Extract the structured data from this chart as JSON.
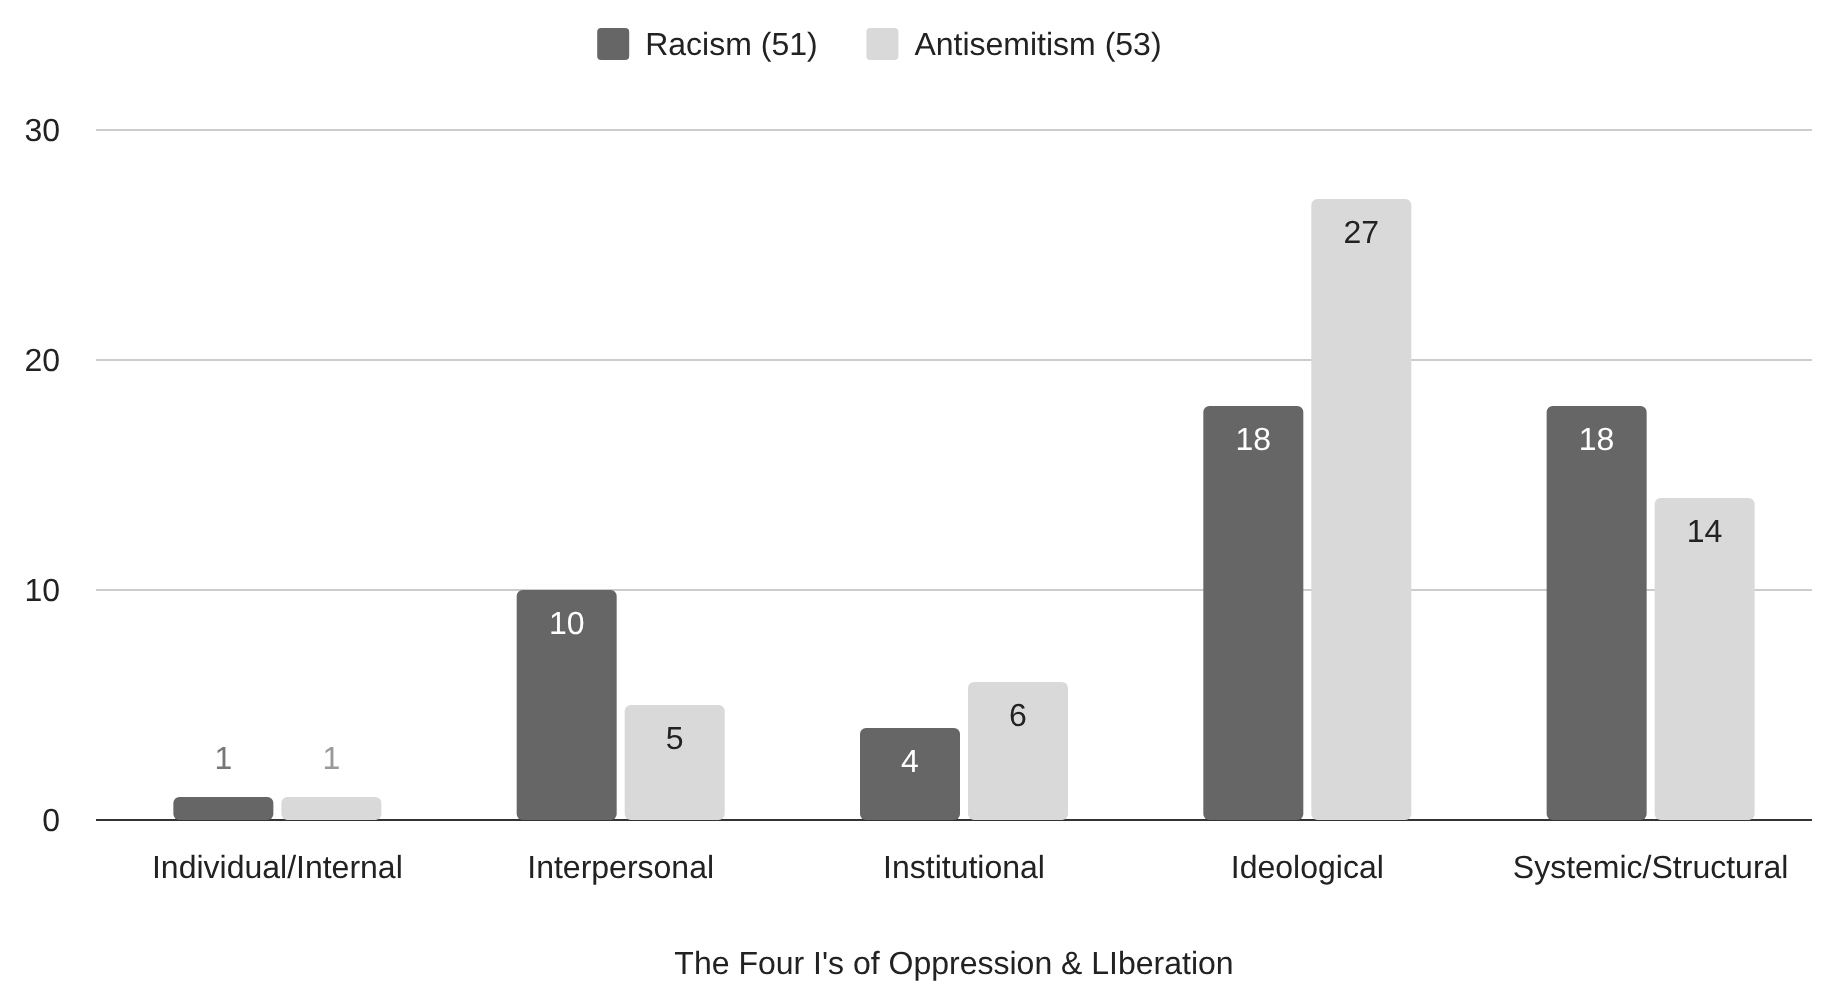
{
  "chart_data": {
    "type": "bar",
    "xlabel": "The Four I's of Oppression & LIberation",
    "categories": [
      "Individual/Internal",
      "Interpersonal",
      "Institutional",
      "Ideological",
      "Systemic/Structural"
    ],
    "series": [
      {
        "name": "Racism (51)",
        "color": "#666666",
        "values": [
          1,
          10,
          4,
          18,
          18
        ]
      },
      {
        "name": "Antisemitism (53)",
        "color": "#d9d9d9",
        "values": [
          1,
          5,
          6,
          27,
          14
        ]
      }
    ],
    "ylim": [
      0,
      30
    ],
    "yticks": [
      0,
      10,
      20,
      30
    ],
    "grid": "y",
    "legend": "top",
    "data_labels": true
  }
}
